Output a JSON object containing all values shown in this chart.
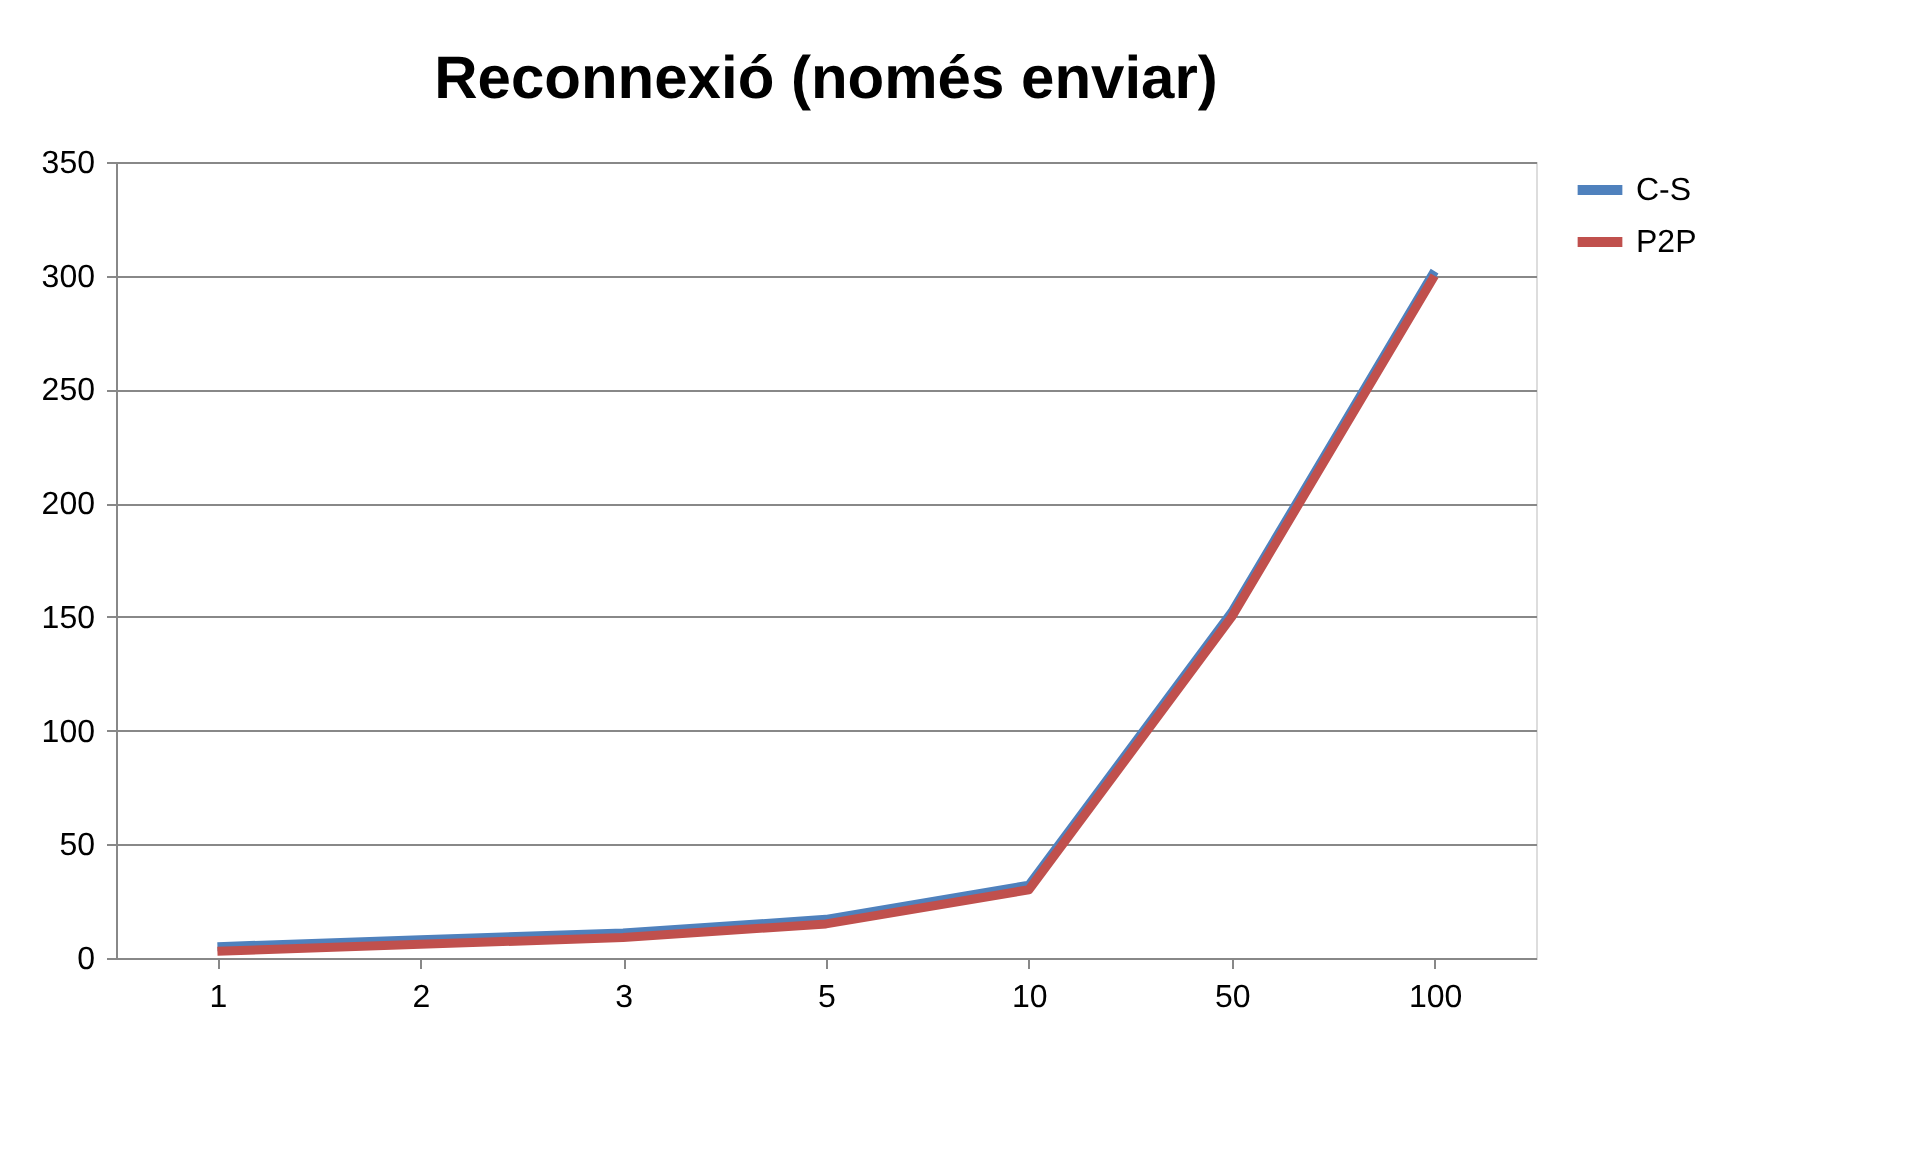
{
  "chart_data": {
    "type": "line",
    "title": "Reconnexió (només enviar)",
    "categories": [
      "1",
      "2",
      "3",
      "5",
      "10",
      "50",
      "100"
    ],
    "series": [
      {
        "name": "C-S",
        "color": "#4f81bd",
        "values": [
          5,
          8,
          11,
          17,
          32,
          152,
          302
        ]
      },
      {
        "name": "P2P",
        "color": "#c0504d",
        "values": [
          3,
          6,
          9,
          15,
          30,
          150,
          300
        ]
      }
    ],
    "ylim": [
      0,
      350
    ],
    "yticks": [
      0,
      50,
      100,
      150,
      200,
      250,
      300,
      350
    ],
    "grid": "y",
    "legend": "right",
    "line_style": "solid",
    "marker": "none"
  }
}
